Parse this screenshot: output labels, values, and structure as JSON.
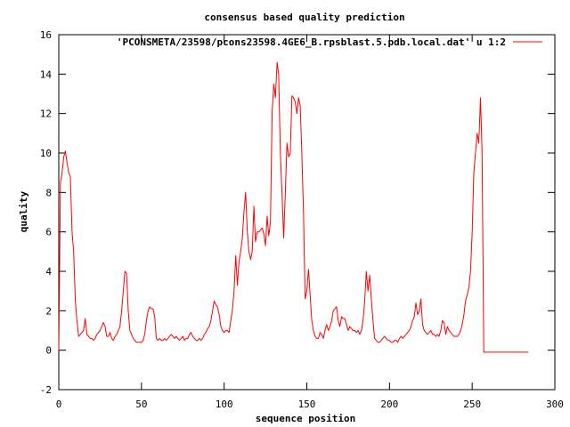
{
  "chart_data": {
    "type": "line",
    "title": "consensus based quality prediction",
    "xlabel": "sequence position",
    "ylabel": "quality",
    "xlim": [
      0,
      300
    ],
    "ylim": [
      -2,
      16
    ],
    "x_ticks": [
      0,
      50,
      100,
      150,
      200,
      250,
      300
    ],
    "y_ticks": [
      -2,
      0,
      2,
      4,
      6,
      8,
      10,
      12,
      14,
      16
    ],
    "grid": false,
    "legend_position": "top-right",
    "series": [
      {
        "name": "'PCONSMETA/23598/pcons23598.4GE6_B.rpsblast.5.pdb.local.dat' u 1:2",
        "color": "#ff0000",
        "points": [
          [
            0,
            0
          ],
          [
            1,
            8.5
          ],
          [
            2,
            9.0
          ],
          [
            3,
            9.8
          ],
          [
            4,
            10.1
          ],
          [
            5,
            9.5
          ],
          [
            6,
            9.0
          ],
          [
            7,
            8.8
          ],
          [
            8,
            6.0
          ],
          [
            9,
            5.0
          ],
          [
            10,
            2.5
          ],
          [
            11,
            1.5
          ],
          [
            12,
            0.7
          ],
          [
            13,
            0.8
          ],
          [
            14,
            0.9
          ],
          [
            15,
            1.0
          ],
          [
            16,
            1.6
          ],
          [
            17,
            0.8
          ],
          [
            18,
            0.7
          ],
          [
            19,
            0.6
          ],
          [
            20,
            0.6
          ],
          [
            21,
            0.5
          ],
          [
            22,
            0.6
          ],
          [
            23,
            0.8
          ],
          [
            24,
            0.9
          ],
          [
            25,
            1.0
          ],
          [
            26,
            1.2
          ],
          [
            27,
            1.4
          ],
          [
            28,
            1.2
          ],
          [
            29,
            0.7
          ],
          [
            30,
            0.7
          ],
          [
            31,
            0.9
          ],
          [
            32,
            0.6
          ],
          [
            33,
            0.5
          ],
          [
            34,
            0.7
          ],
          [
            35,
            0.8
          ],
          [
            36,
            1.0
          ],
          [
            37,
            1.2
          ],
          [
            38,
            2.0
          ],
          [
            39,
            3.0
          ],
          [
            40,
            4.0
          ],
          [
            41,
            3.9
          ],
          [
            42,
            2.0
          ],
          [
            43,
            1.0
          ],
          [
            44,
            0.8
          ],
          [
            45,
            0.6
          ],
          [
            46,
            0.5
          ],
          [
            47,
            0.4
          ],
          [
            48,
            0.4
          ],
          [
            49,
            0.4
          ],
          [
            50,
            0.4
          ],
          [
            51,
            0.5
          ],
          [
            52,
            0.8
          ],
          [
            53,
            1.5
          ],
          [
            54,
            2.0
          ],
          [
            55,
            2.2
          ],
          [
            56,
            2.1
          ],
          [
            57,
            2.1
          ],
          [
            58,
            1.7
          ],
          [
            59,
            0.6
          ],
          [
            60,
            0.5
          ],
          [
            61,
            0.6
          ],
          [
            62,
            0.5
          ],
          [
            63,
            0.5
          ],
          [
            64,
            0.6
          ],
          [
            65,
            0.5
          ],
          [
            66,
            0.6
          ],
          [
            67,
            0.7
          ],
          [
            68,
            0.8
          ],
          [
            69,
            0.7
          ],
          [
            70,
            0.6
          ],
          [
            71,
            0.7
          ],
          [
            72,
            0.6
          ],
          [
            73,
            0.5
          ],
          [
            74,
            0.6
          ],
          [
            75,
            0.7
          ],
          [
            76,
            0.5
          ],
          [
            77,
            0.6
          ],
          [
            78,
            0.6
          ],
          [
            79,
            0.8
          ],
          [
            80,
            0.9
          ],
          [
            81,
            0.7
          ],
          [
            82,
            0.6
          ],
          [
            83,
            0.5
          ],
          [
            84,
            0.5
          ],
          [
            85,
            0.6
          ],
          [
            86,
            0.5
          ],
          [
            87,
            0.6
          ],
          [
            88,
            0.8
          ],
          [
            89,
            0.9
          ],
          [
            90,
            1.1
          ],
          [
            91,
            1.2
          ],
          [
            92,
            1.5
          ],
          [
            93,
            2.0
          ],
          [
            94,
            2.5
          ],
          [
            95,
            2.3
          ],
          [
            96,
            2.2
          ],
          [
            97,
            1.8
          ],
          [
            98,
            1.2
          ],
          [
            99,
            1.0
          ],
          [
            100,
            0.9
          ],
          [
            101,
            1.0
          ],
          [
            102,
            1.0
          ],
          [
            103,
            0.9
          ],
          [
            104,
            1.5
          ],
          [
            105,
            2.0
          ],
          [
            106,
            3.0
          ],
          [
            107,
            4.8
          ],
          [
            108,
            3.3
          ],
          [
            109,
            4.5
          ],
          [
            110,
            5.0
          ],
          [
            111,
            5.7
          ],
          [
            112,
            7.0
          ],
          [
            113,
            8.0
          ],
          [
            114,
            6.0
          ],
          [
            115,
            5.0
          ],
          [
            116,
            4.6
          ],
          [
            117,
            5.0
          ],
          [
            118,
            7.3
          ],
          [
            119,
            5.5
          ],
          [
            120,
            6.0
          ],
          [
            121,
            6.0
          ],
          [
            122,
            6.1
          ],
          [
            123,
            6.2
          ],
          [
            124,
            5.9
          ],
          [
            125,
            5.3
          ],
          [
            126,
            6.8
          ],
          [
            127,
            5.8
          ],
          [
            128,
            6.5
          ],
          [
            129,
            12.0
          ],
          [
            130,
            13.5
          ],
          [
            131,
            12.8
          ],
          [
            132,
            14.6
          ],
          [
            133,
            14.0
          ],
          [
            134,
            10.0
          ],
          [
            135,
            8.0
          ],
          [
            136,
            5.7
          ],
          [
            137,
            8.0
          ],
          [
            138,
            10.5
          ],
          [
            139,
            9.8
          ],
          [
            140,
            10.0
          ],
          [
            141,
            12.9
          ],
          [
            142,
            12.8
          ],
          [
            143,
            12.6
          ],
          [
            144,
            12.0
          ],
          [
            145,
            12.8
          ],
          [
            146,
            12.4
          ],
          [
            147,
            10.0
          ],
          [
            148,
            7.0
          ],
          [
            149,
            2.6
          ],
          [
            150,
            3.0
          ],
          [
            151,
            4.1
          ],
          [
            152,
            2.8
          ],
          [
            153,
            1.5
          ],
          [
            154,
            1.0
          ],
          [
            155,
            0.7
          ],
          [
            156,
            0.6
          ],
          [
            157,
            0.6
          ],
          [
            158,
            0.9
          ],
          [
            159,
            0.8
          ],
          [
            160,
            0.6
          ],
          [
            161,
            1.0
          ],
          [
            162,
            1.3
          ],
          [
            163,
            1.0
          ],
          [
            164,
            1.2
          ],
          [
            165,
            1.5
          ],
          [
            166,
            2.0
          ],
          [
            167,
            2.1
          ],
          [
            168,
            2.2
          ],
          [
            169,
            1.5
          ],
          [
            170,
            1.2
          ],
          [
            171,
            1.7
          ],
          [
            172,
            1.6
          ],
          [
            173,
            1.6
          ],
          [
            174,
            1.3
          ],
          [
            175,
            1.0
          ],
          [
            176,
            1.2
          ],
          [
            177,
            1.1
          ],
          [
            178,
            1.0
          ],
          [
            179,
            1.0
          ],
          [
            180,
            0.9
          ],
          [
            181,
            1.0
          ],
          [
            182,
            0.8
          ],
          [
            183,
            1.0
          ],
          [
            184,
            1.5
          ],
          [
            185,
            2.5
          ],
          [
            186,
            4.0
          ],
          [
            187,
            3.0
          ],
          [
            188,
            3.8
          ],
          [
            189,
            2.6
          ],
          [
            190,
            1.5
          ],
          [
            191,
            0.6
          ],
          [
            192,
            0.5
          ],
          [
            193,
            0.4
          ],
          [
            194,
            0.4
          ],
          [
            195,
            0.5
          ],
          [
            196,
            0.6
          ],
          [
            197,
            0.7
          ],
          [
            198,
            0.6
          ],
          [
            199,
            0.5
          ],
          [
            200,
            0.5
          ],
          [
            201,
            0.4
          ],
          [
            202,
            0.4
          ],
          [
            203,
            0.5
          ],
          [
            204,
            0.5
          ],
          [
            205,
            0.4
          ],
          [
            206,
            0.6
          ],
          [
            207,
            0.7
          ],
          [
            208,
            0.6
          ],
          [
            209,
            0.7
          ],
          [
            210,
            0.8
          ],
          [
            211,
            0.9
          ],
          [
            212,
            1.0
          ],
          [
            213,
            1.2
          ],
          [
            214,
            1.5
          ],
          [
            215,
            1.7
          ],
          [
            216,
            2.4
          ],
          [
            217,
            1.8
          ],
          [
            218,
            2.0
          ],
          [
            219,
            2.6
          ],
          [
            220,
            1.3
          ],
          [
            221,
            1.0
          ],
          [
            222,
            0.9
          ],
          [
            223,
            0.8
          ],
          [
            224,
            0.9
          ],
          [
            225,
            1.0
          ],
          [
            226,
            0.8
          ],
          [
            227,
            0.8
          ],
          [
            228,
            0.7
          ],
          [
            229,
            0.8
          ],
          [
            230,
            0.7
          ],
          [
            231,
            1.0
          ],
          [
            232,
            1.5
          ],
          [
            233,
            1.4
          ],
          [
            234,
            0.8
          ],
          [
            235,
            1.2
          ],
          [
            236,
            1.0
          ],
          [
            237,
            0.9
          ],
          [
            238,
            0.8
          ],
          [
            239,
            0.7
          ],
          [
            240,
            0.7
          ],
          [
            241,
            0.7
          ],
          [
            242,
            0.8
          ],
          [
            243,
            1.0
          ],
          [
            244,
            1.3
          ],
          [
            245,
            1.8
          ],
          [
            246,
            2.5
          ],
          [
            247,
            2.8
          ],
          [
            248,
            3.2
          ],
          [
            249,
            4.0
          ],
          [
            250,
            6.0
          ],
          [
            251,
            9.0
          ],
          [
            252,
            10.0
          ],
          [
            253,
            11.0
          ],
          [
            254,
            10.5
          ],
          [
            255,
            12.8
          ],
          [
            256,
            10.0
          ],
          [
            257,
            -0.1
          ],
          [
            260,
            -0.1
          ],
          [
            270,
            -0.1
          ],
          [
            280,
            -0.1
          ],
          [
            284,
            -0.1
          ]
        ]
      }
    ]
  }
}
